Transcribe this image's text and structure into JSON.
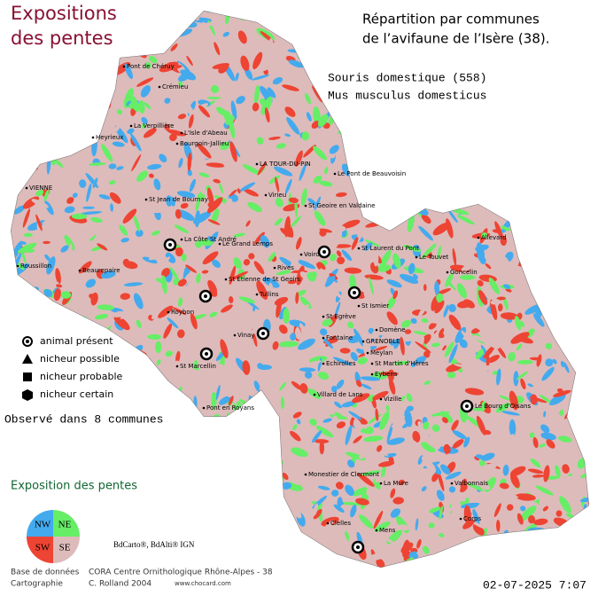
{
  "header": {
    "title_lines": [
      "Expositions",
      "des pentes"
    ],
    "subtitle_lines": [
      "Répartition par communes",
      "de l’avifaune de l’Isère (38)."
    ],
    "species_lines": [
      "Souris domestique  (558)",
      "Mus musculus domesticus"
    ]
  },
  "map": {
    "towns": [
      "Pont de Chéruy",
      "Crémieu",
      "La Verpillière",
      "L'Isle d'Abeau",
      "Heyrieux",
      "Bourgoin-Jallieu",
      "LA TOUR-DU-PIN",
      "Le Pont de Beauvoisin",
      "VIENNE",
      "St Jean de Bournay",
      "Virieu",
      "St Geoire en Valdaine",
      "La Côte St André",
      "Le Grand Lemps",
      "Voiron",
      "St Laurent du Pont",
      "Allevard",
      "Le Touvet",
      "Goncelin",
      "Roussillon",
      "Beaurepaire",
      "Rives",
      "St Etienne de St Geoirs",
      "Tullins",
      "Roybon",
      "Vinay",
      "St Egrève",
      "St Ismier",
      "Fontaine",
      "GRENOBLE",
      "Domène",
      "Meylan",
      "St Marcellin",
      "Echirolles",
      "St Martin d'Hères",
      "Eybens",
      "Vizille",
      "Pont en Royans",
      "Villard de Lans",
      "Le Bourg d'Oisans",
      "Monestier de Clermont",
      "La Mure",
      "Valbonnais",
      "Corps",
      "Clelles",
      "Mens"
    ]
  },
  "legend": {
    "items": [
      "animal présent",
      "nicheur possible",
      "nicheur probable",
      "nicheur certain"
    ],
    "observed": "Observé dans 8 communes"
  },
  "exposure": {
    "title": "Exposition des pentes",
    "quadrants": [
      "NW",
      "NE",
      "SW",
      "SE"
    ]
  },
  "credits": "BdCarto®, BdAlti® IGN",
  "footer": {
    "rows": [
      [
        "Base de données",
        "CORA Centre Ornithologique Rhône-Alpes - 38"
      ],
      [
        "Cartographie",
        "C. Rolland 2004",
        "www.chocard.com"
      ]
    ],
    "date": "02-07-2025 7:07"
  }
}
